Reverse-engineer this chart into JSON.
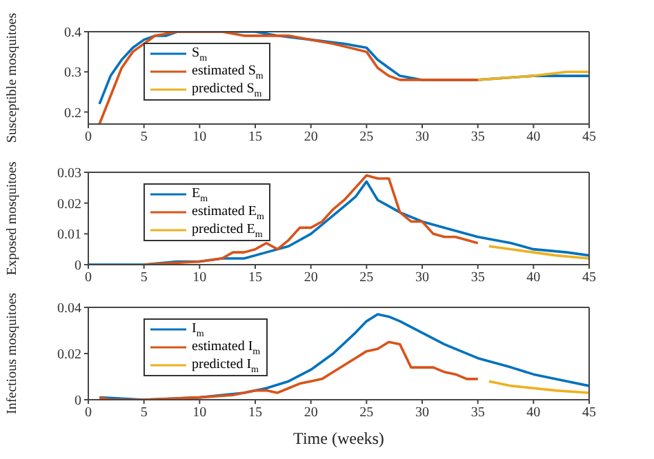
{
  "chart_data": [
    {
      "type": "line",
      "ylabel": "Susceptible mosquitoes",
      "xlim": [
        0,
        45
      ],
      "xticks": [
        0,
        5,
        10,
        15,
        20,
        25,
        30,
        35,
        40,
        45
      ],
      "ylim": [
        0.17,
        0.4
      ],
      "yticks": [
        0.2,
        0.3,
        0.4
      ],
      "legend": "left",
      "series": [
        {
          "name": "S$_{m}$",
          "color": "#0072bd",
          "x": [
            1,
            2,
            3,
            4,
            5,
            6,
            7,
            8,
            10,
            12,
            15,
            17,
            20,
            23,
            25,
            26,
            27,
            28,
            30,
            32,
            35,
            40,
            45
          ],
          "values": [
            0.22,
            0.29,
            0.33,
            0.36,
            0.38,
            0.39,
            0.39,
            0.4,
            0.4,
            0.4,
            0.4,
            0.39,
            0.38,
            0.37,
            0.36,
            0.33,
            0.31,
            0.29,
            0.28,
            0.28,
            0.28,
            0.29,
            0.29
          ]
        },
        {
          "name": "estimated S$_{m}$",
          "color": "#d95319",
          "x": [
            1,
            2,
            3,
            4,
            5,
            6,
            8,
            10,
            12,
            14,
            16,
            18,
            20,
            22,
            25,
            26,
            27,
            28,
            30,
            33,
            35
          ],
          "values": [
            0.17,
            0.24,
            0.31,
            0.35,
            0.37,
            0.39,
            0.4,
            0.4,
            0.4,
            0.39,
            0.39,
            0.39,
            0.38,
            0.37,
            0.35,
            0.31,
            0.29,
            0.28,
            0.28,
            0.28,
            0.28
          ]
        },
        {
          "name": "predicted S$_{m}$",
          "color": "#edb120",
          "x": [
            35,
            40,
            43,
            45
          ],
          "values": [
            0.28,
            0.29,
            0.3,
            0.3
          ]
        }
      ]
    },
    {
      "type": "line",
      "ylabel": "Exposed mosquitoes",
      "xlim": [
        0,
        45
      ],
      "xticks": [
        0,
        5,
        10,
        15,
        20,
        25,
        30,
        35,
        40,
        45
      ],
      "ylim": [
        0,
        0.03
      ],
      "yticks": [
        0,
        0.01,
        0.02,
        0.03
      ],
      "legend": "left",
      "series": [
        {
          "name": "E$_{m}$",
          "color": "#0072bd",
          "x": [
            0,
            5,
            8,
            10,
            12,
            13,
            14,
            16,
            18,
            20,
            22,
            24,
            25,
            26,
            27,
            28,
            30,
            32,
            35,
            38,
            40,
            43,
            45
          ],
          "values": [
            0,
            0,
            0.001,
            0.001,
            0.002,
            0.002,
            0.002,
            0.004,
            0.006,
            0.01,
            0.016,
            0.022,
            0.027,
            0.021,
            0.019,
            0.017,
            0.014,
            0.012,
            0.009,
            0.007,
            0.005,
            0.004,
            0.003
          ]
        },
        {
          "name": "estimated E$_{m}$",
          "color": "#d95319",
          "x": [
            5,
            10,
            12,
            13,
            14,
            15,
            16,
            17,
            18,
            19,
            20,
            21,
            22,
            23,
            24,
            25,
            26,
            27,
            28,
            29,
            30,
            31,
            32,
            33,
            34,
            35
          ],
          "values": [
            0,
            0.001,
            0.002,
            0.004,
            0.004,
            0.005,
            0.007,
            0.005,
            0.008,
            0.012,
            0.012,
            0.014,
            0.018,
            0.021,
            0.025,
            0.029,
            0.028,
            0.028,
            0.017,
            0.014,
            0.014,
            0.01,
            0.009,
            0.009,
            0.008,
            0.007
          ]
        },
        {
          "name": "predicted E$_{m}$",
          "color": "#edb120",
          "x": [
            36,
            38,
            40,
            42,
            45
          ],
          "values": [
            0.006,
            0.005,
            0.004,
            0.003,
            0.002
          ]
        }
      ]
    },
    {
      "type": "line",
      "xlabel": "Time (weeks)",
      "ylabel": "Infectious mosquitoes",
      "xlim": [
        0,
        45
      ],
      "xticks": [
        0,
        5,
        10,
        15,
        20,
        25,
        30,
        35,
        40,
        45
      ],
      "ylim": [
        0,
        0.04
      ],
      "yticks": [
        0,
        0.02,
        0.04
      ],
      "legend": "left",
      "series": [
        {
          "name": "I$_{m}$",
          "color": "#0072bd",
          "x": [
            1,
            5,
            10,
            12,
            14,
            16,
            18,
            20,
            22,
            24,
            25,
            26,
            27,
            28,
            30,
            32,
            35,
            38,
            40,
            43,
            45
          ],
          "values": [
            0.001,
            0,
            0.001,
            0.002,
            0.003,
            0.005,
            0.008,
            0.013,
            0.02,
            0.029,
            0.034,
            0.037,
            0.036,
            0.034,
            0.029,
            0.024,
            0.018,
            0.014,
            0.011,
            0.008,
            0.006
          ]
        },
        {
          "name": "estimated I$_{m}$",
          "color": "#d95319",
          "x": [
            1,
            2,
            5,
            10,
            13,
            15,
            16,
            17,
            18,
            19,
            20,
            21,
            22,
            23,
            24,
            25,
            26,
            27,
            28,
            29,
            30,
            31,
            32,
            33,
            34,
            35
          ],
          "values": [
            0.001,
            0,
            0,
            0.001,
            0.002,
            0.004,
            0.004,
            0.003,
            0.005,
            0.007,
            0.008,
            0.009,
            0.012,
            0.015,
            0.018,
            0.021,
            0.022,
            0.025,
            0.024,
            0.014,
            0.014,
            0.014,
            0.012,
            0.011,
            0.009,
            0.009
          ]
        },
        {
          "name": "predicted I$_{m}$",
          "color": "#edb120",
          "x": [
            36,
            38,
            40,
            42,
            45
          ],
          "values": [
            0.008,
            0.006,
            0.005,
            0.004,
            0.003
          ]
        }
      ]
    }
  ]
}
